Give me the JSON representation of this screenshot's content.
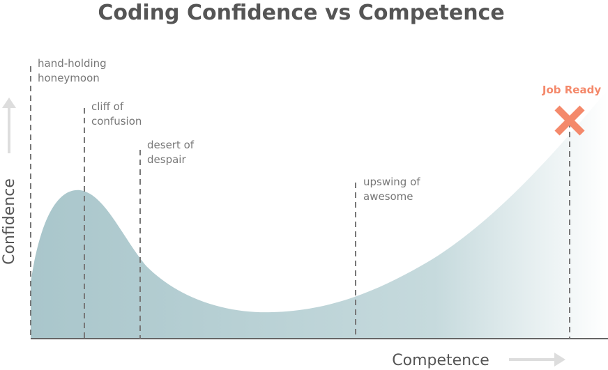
{
  "title": "Coding Confidence vs Competence",
  "y_axis_label": "Confidence",
  "x_axis_label": "Competence",
  "phases": [
    {
      "lines": [
        "hand-holding",
        "honeymoon"
      ]
    },
    {
      "lines": [
        "cliff of",
        "confusion"
      ]
    },
    {
      "lines": [
        "desert of",
        "despair"
      ]
    },
    {
      "lines": [
        "upswing of",
        "awesome"
      ]
    }
  ],
  "marker": {
    "label": "Job Ready"
  }
}
